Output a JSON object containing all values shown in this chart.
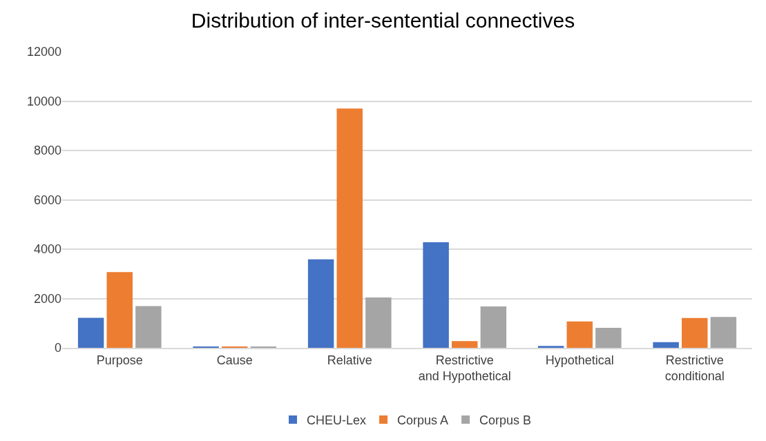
{
  "chart_data": {
    "type": "bar",
    "title": "Distribution of inter-sentential connectives",
    "categories": [
      "Purpose",
      "Cause",
      "Relative",
      "Restrictive and Hypothetical",
      "Hypothetical",
      "Restrictive conditional"
    ],
    "series": [
      {
        "name": "CHEU-Lex",
        "color": "#4472c4",
        "values": [
          1220,
          30,
          3590,
          4280,
          80,
          230
        ]
      },
      {
        "name": "Corpus A",
        "color": "#ed7d31",
        "values": [
          3070,
          50,
          9700,
          270,
          1070,
          1210
        ]
      },
      {
        "name": "Corpus B",
        "color": "#a5a5a5",
        "values": [
          1690,
          30,
          2040,
          1680,
          810,
          1250
        ]
      }
    ],
    "ylim": [
      0,
      12000
    ],
    "yticks": [
      0,
      2000,
      4000,
      6000,
      8000,
      10000,
      12000
    ],
    "grid": "y",
    "legend": "bottom"
  }
}
